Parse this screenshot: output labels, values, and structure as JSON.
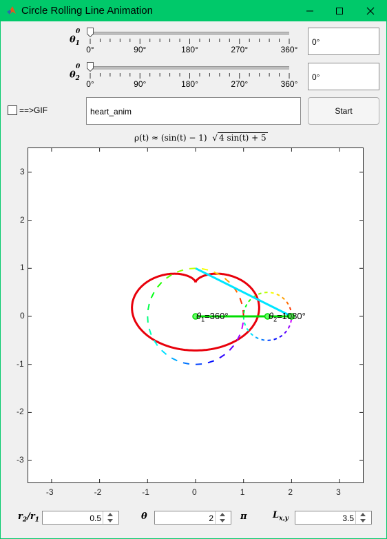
{
  "window": {
    "title": "Circle Rolling Line Animation",
    "accent": "#00c96a"
  },
  "sliders": [
    {
      "ticks": [
        "0°",
        "90°",
        "180°",
        "270°",
        "360°"
      ],
      "value_text": "0°",
      "level": 0
    },
    {
      "ticks": [
        "0°",
        "90°",
        "180°",
        "270°",
        "360°"
      ],
      "value_text": "0°",
      "level": 0
    }
  ],
  "gif": {
    "checkbox_label": "==>GIF",
    "checked": false,
    "filename": "heart_anim"
  },
  "start_button": "Start",
  "plot": {
    "title_rho": "ρ(t) ≈ (sin(t) − 1)",
    "title_sqrt": "4 sin(t) + 5",
    "xticks": [
      "-3",
      "-2",
      "-1",
      "0",
      "1",
      "2",
      "3"
    ],
    "yticks": [
      "3",
      "2",
      "1",
      "0",
      "-1",
      "-2",
      "-3"
    ],
    "label_theta1": "=360°",
    "label_theta2": "=1080°",
    "colors": {
      "curve": "#e8000b",
      "connector": "#00e5ff",
      "rod": "#00dd00"
    }
  },
  "params": {
    "r_label": "/",
    "r_value": "0.5",
    "theta_label": "θ",
    "theta_value": "2",
    "pi_label": "π",
    "l_label": "L",
    "l_sub": "x,y",
    "l_value": "3.5"
  }
}
